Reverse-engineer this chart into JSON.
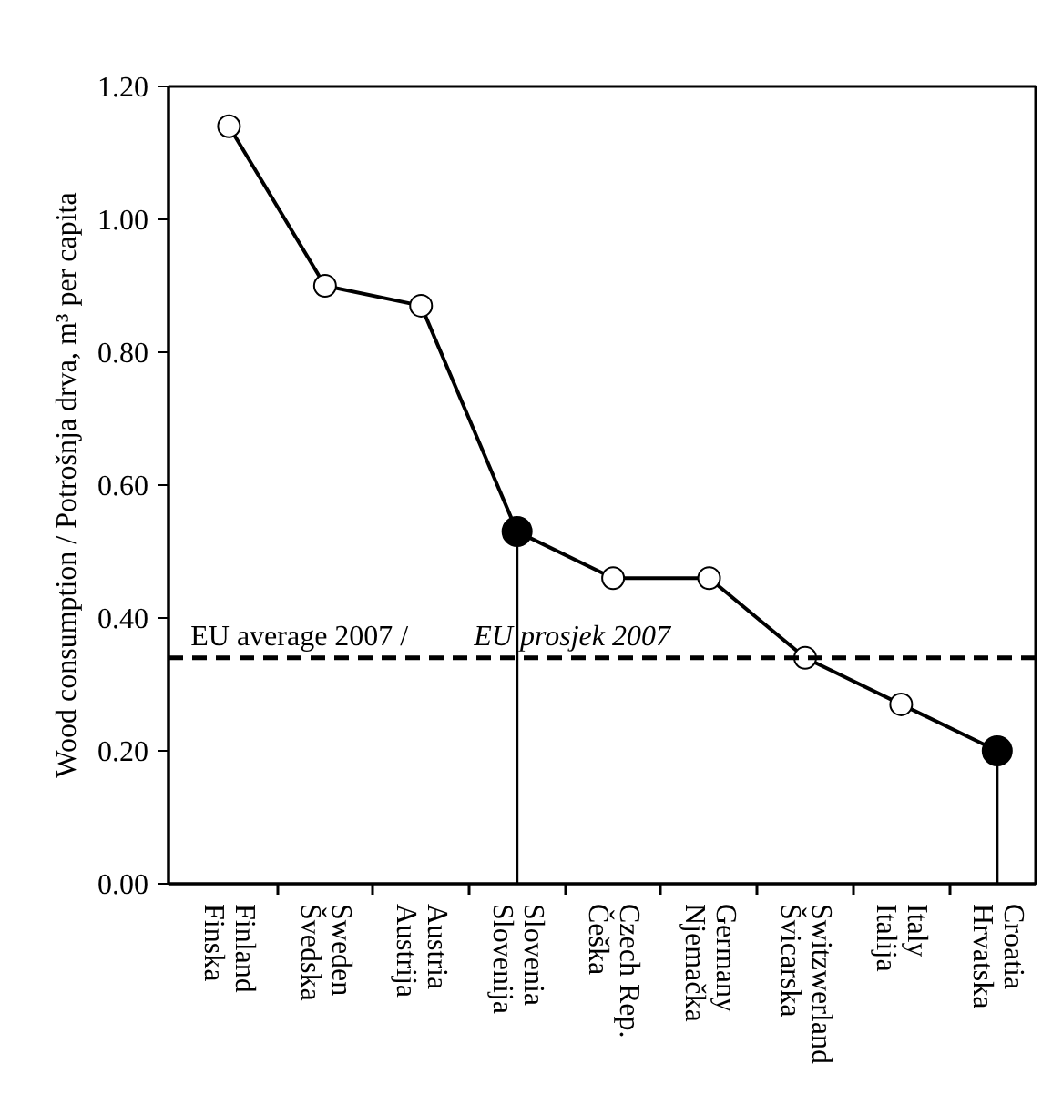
{
  "chart_data": {
    "type": "line",
    "ylabel": "Wood consumption / Potrošnja drva, m³ per capita",
    "categories": [
      "Finland\nFinska",
      "Sweden\nŠvedska",
      "Austria\nAustrija",
      "Slovenia\nSlovenija",
      "Czech Rep.\nČeška",
      "Germany\nNjemačka",
      "Switzwerland\nŠvicarska",
      "Italy\nItalija",
      "Croatia\nHrvatska"
    ],
    "series": [
      {
        "color": "#000000",
        "values": [
          1.14,
          0.9,
          0.87,
          0.53,
          0.46,
          0.46,
          0.34,
          0.27,
          0.2
        ]
      },
      {
        "type": "lollipop",
        "color": "#000000",
        "values": [
          null,
          null,
          null,
          0.53,
          null,
          null,
          null,
          null,
          0.2
        ]
      }
    ],
    "marker": "circle",
    "ylim": [
      0,
      1.2
    ],
    "yticks": [
      {
        "value": 0,
        "label": "0.00"
      },
      {
        "value": 0.2,
        "label": "0.20"
      },
      {
        "value": 0.4,
        "label": "0.40"
      },
      {
        "value": 0.6,
        "label": "0.60"
      },
      {
        "value": 0.8,
        "label": "0.80"
      },
      {
        "value": 1.0,
        "label": "1.00"
      },
      {
        "value": 1.2,
        "label": "1.20"
      }
    ],
    "ref_lines": [
      {
        "axis": "y",
        "value": 0.34,
        "label": "EU average 2007 / EU prosjek 2007",
        "color": "#000000",
        "line_style": "dashed"
      }
    ]
  }
}
